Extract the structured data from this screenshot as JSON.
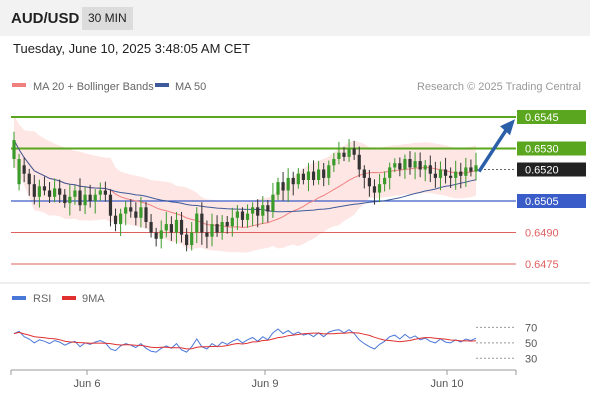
{
  "header": {
    "symbol": "AUD/USD",
    "timeframe": "30 MIN"
  },
  "datetime": "Tuesday, June 10, 2025 3:48:05 AM CET",
  "legend": {
    "ma20": "MA 20 + Bollinger Bands",
    "ma50": "MA 50",
    "credit": "Research © 2025 Trading Central"
  },
  "rsi_legend": {
    "rsi": "RSI",
    "ma9": "9MA"
  },
  "colors": {
    "bb_fill": "#fde0dc",
    "ma20": "#f08080",
    "ma50": "#3f5a9a",
    "up": "#3a9a2a",
    "down": "#333333",
    "resistance": "#5aa61e",
    "support_blue": "#3a5cc8",
    "support_red": "#e06060",
    "arrow": "#2b5fa8",
    "rsi": "#4a78d8",
    "rsi_ma": "#e03030"
  },
  "chart_data": {
    "type": "candlestick",
    "price_range": [
      0.6465,
      0.6555
    ],
    "levels": [
      {
        "value": 0.6545,
        "label": "0.6545",
        "type": "resistance"
      },
      {
        "value": 0.653,
        "label": "0.6530",
        "type": "resistance"
      },
      {
        "value": 0.652,
        "label": "0.6520",
        "type": "current"
      },
      {
        "value": 0.6505,
        "label": "0.6505",
        "type": "support"
      },
      {
        "value": 0.649,
        "label": "0.6490",
        "type": "support"
      },
      {
        "value": 0.6475,
        "label": "0.6475",
        "type": "support"
      }
    ],
    "x_ticks": [
      "Jun 6",
      "Jun 9",
      "Jun 10"
    ],
    "rsi_ticks": [
      70,
      50,
      30
    ],
    "series_keys": [
      [
        0.6525,
        0.6534
      ],
      [
        0.6513,
        0.6525
      ],
      [
        0.6522,
        0.6518
      ],
      [
        0.6518,
        0.6513
      ],
      [
        0.6513,
        0.6507
      ],
      [
        0.6507,
        0.6512
      ],
      [
        0.6512,
        0.651
      ],
      [
        0.651,
        0.6507
      ],
      [
        0.6507,
        0.6511
      ],
      [
        0.6511,
        0.6508
      ],
      [
        0.6508,
        0.6504
      ],
      [
        0.6504,
        0.6507
      ],
      [
        0.6507,
        0.651
      ],
      [
        0.651,
        0.6503
      ],
      [
        0.6503,
        0.6508
      ],
      [
        0.6508,
        0.6505
      ],
      [
        0.6505,
        0.6508
      ],
      [
        0.6508,
        0.651
      ],
      [
        0.651,
        0.6508
      ],
      [
        0.6508,
        0.6498
      ],
      [
        0.6498,
        0.6494
      ],
      [
        0.6494,
        0.6499
      ],
      [
        0.6499,
        0.6502
      ],
      [
        0.6502,
        0.65
      ],
      [
        0.65,
        0.6497
      ],
      [
        0.6497,
        0.6502
      ],
      [
        0.6502,
        0.6495
      ],
      [
        0.6495,
        0.649
      ],
      [
        0.649,
        0.6487
      ],
      [
        0.6487,
        0.6491
      ],
      [
        0.6491,
        0.6494
      ],
      [
        0.6494,
        0.649
      ],
      [
        0.649,
        0.6496
      ],
      [
        0.6496,
        0.6489
      ],
      [
        0.6489,
        0.6484
      ],
      [
        0.6484,
        0.649
      ],
      [
        0.649,
        0.6499
      ],
      [
        0.6499,
        0.649
      ],
      [
        0.649,
        0.6488
      ],
      [
        0.6488,
        0.6494
      ],
      [
        0.6494,
        0.649
      ],
      [
        0.649,
        0.6495
      ],
      [
        0.6495,
        0.6493
      ],
      [
        0.6493,
        0.6497
      ],
      [
        0.6497,
        0.65
      ],
      [
        0.65,
        0.6496
      ],
      [
        0.6496,
        0.6499
      ],
      [
        0.6499,
        0.6502
      ],
      [
        0.6502,
        0.6498
      ],
      [
        0.6498,
        0.6503
      ],
      [
        0.6503,
        0.65
      ],
      [
        0.65,
        0.6508
      ],
      [
        0.6508,
        0.6514
      ],
      [
        0.6514,
        0.651
      ],
      [
        0.651,
        0.6516
      ],
      [
        0.6516,
        0.6513
      ],
      [
        0.6513,
        0.6518
      ],
      [
        0.6518,
        0.6515
      ],
      [
        0.6515,
        0.6519
      ],
      [
        0.6519,
        0.6515
      ],
      [
        0.6515,
        0.652
      ],
      [
        0.652,
        0.6516
      ],
      [
        0.6516,
        0.6522
      ],
      [
        0.6522,
        0.6525
      ],
      [
        0.6525,
        0.6528
      ],
      [
        0.6528,
        0.6526
      ],
      [
        0.6526,
        0.653
      ],
      [
        0.653,
        0.6527
      ],
      [
        0.6527,
        0.652
      ],
      [
        0.652,
        0.6516
      ],
      [
        0.6516,
        0.6512
      ],
      [
        0.6512,
        0.6509
      ],
      [
        0.6509,
        0.6513
      ],
      [
        0.6513,
        0.6516
      ],
      [
        0.6516,
        0.6521
      ],
      [
        0.6521,
        0.6523
      ],
      [
        0.6523,
        0.652
      ],
      [
        0.652,
        0.6525
      ],
      [
        0.6525,
        0.6521
      ],
      [
        0.6521,
        0.6524
      ],
      [
        0.6524,
        0.652
      ],
      [
        0.652,
        0.6522
      ],
      [
        0.6522,
        0.6518
      ],
      [
        0.6518,
        0.6516
      ],
      [
        0.6516,
        0.652
      ],
      [
        0.652,
        0.6517
      ],
      [
        0.6517,
        0.6516
      ],
      [
        0.6516,
        0.6519
      ],
      [
        0.6519,
        0.6517
      ],
      [
        0.6517,
        0.6521
      ],
      [
        0.6521,
        0.6519
      ],
      [
        0.6519,
        0.6522
      ]
    ],
    "rsi_levels": [
      62,
      65,
      58,
      55,
      50,
      54,
      52,
      49,
      53,
      51,
      47,
      50,
      52,
      45,
      50,
      48,
      51,
      53,
      50,
      42,
      40,
      46,
      49,
      47,
      44,
      49,
      43,
      39,
      38,
      43,
      46,
      43,
      49,
      41,
      38,
      45,
      55,
      45,
      42,
      49,
      45,
      51,
      48,
      52,
      55,
      50,
      54,
      57,
      52,
      58,
      54,
      63,
      68,
      62,
      66,
      61,
      64,
      60,
      62,
      58,
      63,
      58,
      64,
      66,
      67,
      63,
      67,
      62,
      54,
      49,
      45,
      42,
      48,
      52,
      58,
      60,
      55,
      61,
      56,
      59,
      54,
      56,
      52,
      50,
      55,
      51,
      50,
      54,
      51,
      55,
      53,
      56
    ]
  }
}
